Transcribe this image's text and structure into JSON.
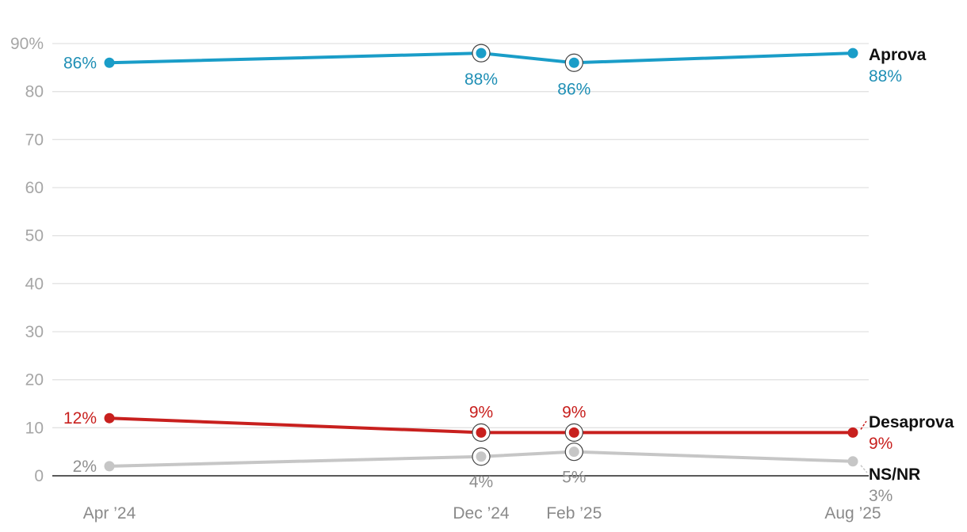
{
  "chart_data": {
    "type": "line",
    "title": "",
    "xlabel": "",
    "ylabel": "",
    "ylim": [
      0,
      90
    ],
    "y_ticks": [
      0,
      10,
      20,
      30,
      40,
      50,
      60,
      70,
      80,
      90
    ],
    "y_tick_labels": [
      "0",
      "10",
      "20",
      "30",
      "40",
      "50",
      "60",
      "70",
      "80",
      "90%"
    ],
    "x_labels": [
      "Apr ’24",
      "Dec ’24",
      "Feb ’25",
      "Aug ’25"
    ],
    "x_positions_months": [
      0,
      8,
      10,
      16
    ],
    "grid": true,
    "legend": "direct labels at right end of lines",
    "series": [
      {
        "name": "Aprova",
        "color": "#1a9dc8",
        "label_color": "#1f8fb5",
        "values": [
          86,
          88,
          86,
          88
        ],
        "data_labels": [
          "86%",
          "88%",
          "86%",
          "88%"
        ],
        "highlighted": [
          false,
          true,
          true,
          false
        ]
      },
      {
        "name": "Desaprova",
        "color": "#c8201e",
        "label_color": "#c8201e",
        "values": [
          12,
          9,
          9,
          9
        ],
        "data_labels": [
          "12%",
          "9%",
          "9%",
          "9%"
        ],
        "highlighted": [
          false,
          true,
          true,
          false
        ]
      },
      {
        "name": "NS/NR",
        "color": "#c6c6c6",
        "label_color": "#8f8f8f",
        "values": [
          2,
          4,
          5,
          3
        ],
        "data_labels": [
          "2%",
          "4%",
          "5%",
          "3%"
        ],
        "highlighted": [
          false,
          true,
          true,
          false
        ]
      }
    ]
  }
}
